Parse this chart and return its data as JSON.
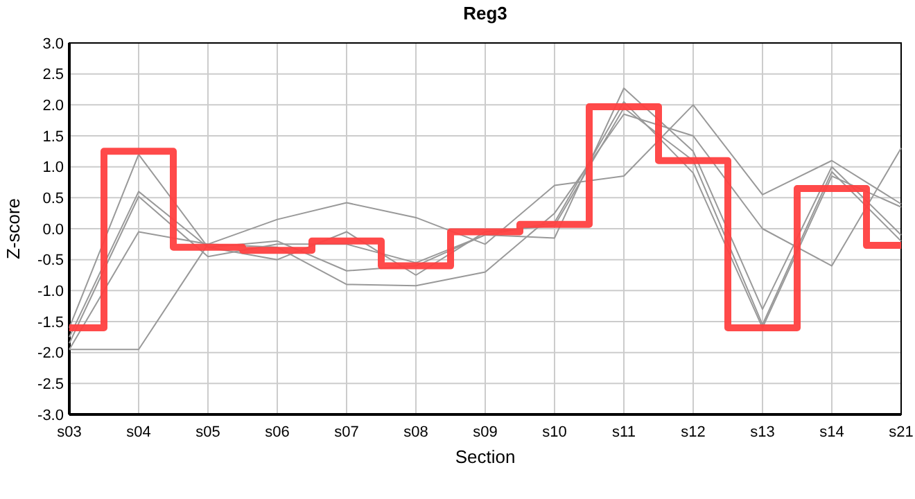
{
  "chart_data": {
    "type": "line",
    "title": "Reg3",
    "xlabel": "Section",
    "ylabel": "Z-score",
    "categories": [
      "s03",
      "s04",
      "s05",
      "s06",
      "s07",
      "s08",
      "s09",
      "s10",
      "s11",
      "s12",
      "s13",
      "s14",
      "s21"
    ],
    "ylim": [
      -3,
      3
    ],
    "yticks": [
      {
        "value": -3,
        "label": "-3.0"
      },
      {
        "value": -2.5,
        "label": "-2.5"
      },
      {
        "value": -2,
        "label": "-2.0"
      },
      {
        "value": -1.5,
        "label": "-1.5"
      },
      {
        "value": -1,
        "label": "-1.0"
      },
      {
        "value": -0.5,
        "label": "-0.5"
      },
      {
        "value": 0,
        "label": "0.0"
      },
      {
        "value": 0.5,
        "label": "0.5"
      },
      {
        "value": 1,
        "label": "1.0"
      },
      {
        "value": 1.5,
        "label": "1.5"
      },
      {
        "value": 2,
        "label": "2.0"
      },
      {
        "value": 2.5,
        "label": "2.5"
      },
      {
        "value": 3,
        "label": "3.0"
      }
    ],
    "grid": true,
    "series": [
      {
        "color": "#999999",
        "values": [
          -1.95,
          -0.05,
          -0.25,
          0.15,
          0.42,
          0.18,
          -0.25,
          0.7,
          0.85,
          2.0,
          0.55,
          1.1,
          0.4
        ]
      },
      {
        "color": "#999999",
        "values": [
          -1.95,
          -1.95,
          -0.25,
          -0.3,
          -0.9,
          -0.92,
          -0.7,
          0.25,
          1.85,
          1.5,
          0.0,
          -0.6,
          1.3
        ]
      },
      {
        "color": "#999999",
        "values": [
          -1.6,
          1.2,
          -0.3,
          -0.2,
          -0.68,
          -0.6,
          -0.1,
          -0.15,
          2.27,
          1.25,
          -1.3,
          1.0,
          -0.1
        ]
      },
      {
        "color": "#999999",
        "values": [
          -1.75,
          0.6,
          -0.3,
          -0.5,
          -0.05,
          -0.75,
          -0.05,
          0.05,
          1.95,
          1.1,
          -1.55,
          0.92,
          -0.2
        ]
      },
      {
        "color": "#999999",
        "values": [
          -1.85,
          0.52,
          -0.45,
          -0.25,
          -0.25,
          -0.55,
          -0.1,
          0.1,
          2.05,
          0.9,
          -1.6,
          0.85,
          0.35
        ]
      },
      {
        "type": "step",
        "color": "#ff4040",
        "values": [
          -1.6,
          1.25,
          -0.3,
          -0.35,
          -0.2,
          -0.6,
          -0.05,
          0.07,
          1.97,
          1.1,
          -1.6,
          0.65,
          -0.27
        ]
      }
    ]
  }
}
